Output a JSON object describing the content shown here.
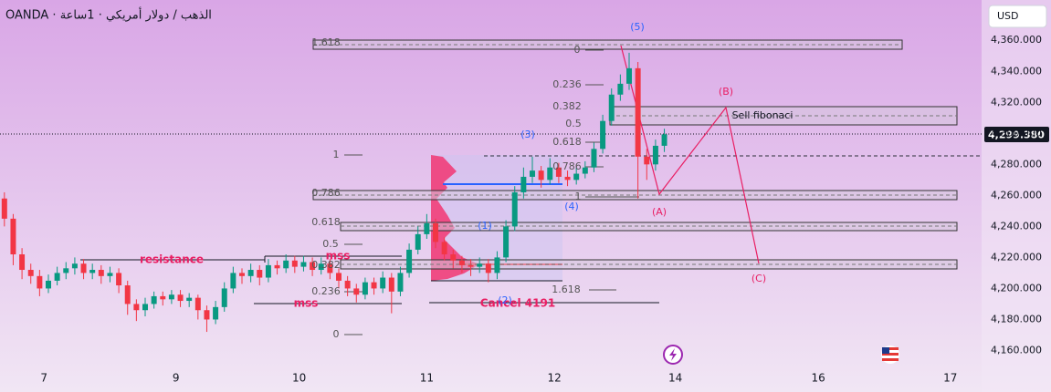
{
  "chart_data": {
    "type": "candlestick",
    "title": "OANDA · الذهب / دولار أمريكي · 1ساعة",
    "currency": "USD",
    "up_color": "#089981",
    "down_color": "#f23645",
    "grid": false,
    "xlim": [
      0,
      220
    ],
    "xticks": [
      {
        "value": 10,
        "label": "7"
      },
      {
        "value": 40,
        "label": "9"
      },
      {
        "value": 68,
        "label": "10"
      },
      {
        "value": 97,
        "label": "11"
      },
      {
        "value": 126,
        "label": "12"
      },
      {
        "value": 153.5,
        "label": "14"
      },
      {
        "value": 186,
        "label": "16"
      },
      {
        "value": 216,
        "label": "17"
      }
    ],
    "ylim": [
      4145,
      4386
    ],
    "yticks": [
      {
        "value": 4160,
        "label": "4,160.000"
      },
      {
        "value": 4180,
        "label": "4,180.000"
      },
      {
        "value": 4200,
        "label": "4,200.000"
      },
      {
        "value": 4220,
        "label": "4,220.000"
      },
      {
        "value": 4240,
        "label": "4,240.000"
      },
      {
        "value": 4260,
        "label": "4,260.000"
      },
      {
        "value": 4280,
        "label": "4,280.000"
      },
      {
        "value": 4300,
        "label": "4,300.000"
      },
      {
        "value": 4320,
        "label": "4,320.000"
      },
      {
        "value": 4340,
        "label": "4,340.000"
      },
      {
        "value": 4360,
        "label": "4,360.000"
      }
    ],
    "last_price": {
      "value": 4299.38,
      "label": "4,299.380"
    },
    "x": [
      1,
      3,
      5,
      7,
      9,
      11,
      13,
      15,
      17,
      19,
      21,
      23,
      25,
      27,
      29,
      31,
      33,
      35,
      37,
      39,
      41,
      43,
      45,
      47,
      49,
      51,
      53,
      55,
      57,
      59,
      61,
      63,
      65,
      67,
      69,
      71,
      73,
      75,
      77,
      79,
      81,
      83,
      85,
      87,
      89,
      91,
      93,
      95,
      97,
      99,
      101,
      103,
      105,
      107,
      109,
      111,
      113,
      115,
      117,
      119,
      121,
      123,
      125,
      127,
      129,
      131,
      133,
      135,
      137,
      139,
      141,
      143,
      145,
      147,
      149,
      151
    ],
    "open": [
      4258,
      4245,
      4222,
      4212,
      4208,
      4200,
      4205,
      4210,
      4213,
      4216,
      4210,
      4212,
      4208,
      4210,
      4202,
      4190,
      4186,
      4190,
      4195,
      4193,
      4196,
      4192,
      4194,
      4186,
      4180,
      4188,
      4200,
      4210,
      4208,
      4212,
      4207,
      4215,
      4213,
      4218,
      4214,
      4217,
      4212,
      4216,
      4210,
      4205,
      4200,
      4196,
      4204,
      4200,
      4207,
      4198,
      4210,
      4225,
      4235,
      4242,
      4230,
      4222,
      4218,
      4215,
      4214,
      4216,
      4210,
      4220,
      4240,
      4262,
      4272,
      4276,
      4270,
      4278,
      4272,
      4270,
      4274,
      4278,
      4290,
      4308,
      4325,
      4332,
      4342,
      4285,
      4280,
      4292
    ],
    "high": [
      4262,
      4248,
      4226,
      4216,
      4212,
      4209,
      4214,
      4217,
      4220,
      4219,
      4216,
      4215,
      4214,
      4213,
      4205,
      4193,
      4194,
      4198,
      4198,
      4199,
      4199,
      4197,
      4196,
      4189,
      4192,
      4204,
      4214,
      4213,
      4216,
      4215,
      4219,
      4218,
      4222,
      4221,
      4221,
      4220,
      4220,
      4219,
      4213,
      4208,
      4203,
      4207,
      4207,
      4211,
      4210,
      4214,
      4229,
      4240,
      4248,
      4245,
      4233,
      4225,
      4221,
      4219,
      4220,
      4219,
      4224,
      4244,
      4266,
      4278,
      4285,
      4279,
      4284,
      4281,
      4276,
      4278,
      4282,
      4294,
      4312,
      4329,
      4338,
      4352,
      4346,
      4290,
      4296,
      4303
    ],
    "low": [
      4240,
      4215,
      4206,
      4203,
      4195,
      4197,
      4202,
      4206,
      4209,
      4206,
      4206,
      4203,
      4204,
      4197,
      4183,
      4179,
      4182,
      4187,
      4189,
      4190,
      4188,
      4188,
      4180,
      4172,
      4177,
      4185,
      4197,
      4203,
      4204,
      4202,
      4204,
      4209,
      4210,
      4210,
      4211,
      4208,
      4209,
      4206,
      4200,
      4195,
      4191,
      4193,
      4196,
      4197,
      4184,
      4195,
      4207,
      4222,
      4232,
      4226,
      4218,
      4213,
      4210,
      4208,
      4210,
      4204,
      4206,
      4217,
      4237,
      4258,
      4268,
      4265,
      4267,
      4268,
      4266,
      4267,
      4271,
      4275,
      4287,
      4305,
      4321,
      4328,
      4258,
      4270,
      4276,
      4288
    ],
    "close": [
      4245,
      4222,
      4212,
      4208,
      4200,
      4205,
      4210,
      4213,
      4216,
      4210,
      4212,
      4208,
      4210,
      4202,
      4190,
      4186,
      4190,
      4195,
      4193,
      4196,
      4192,
      4194,
      4186,
      4180,
      4188,
      4200,
      4210,
      4208,
      4212,
      4207,
      4215,
      4213,
      4218,
      4214,
      4217,
      4212,
      4216,
      4210,
      4205,
      4200,
      4196,
      4204,
      4200,
      4207,
      4198,
      4210,
      4225,
      4235,
      4242,
      4230,
      4222,
      4218,
      4215,
      4214,
      4216,
      4210,
      4220,
      4240,
      4262,
      4272,
      4276,
      4270,
      4278,
      4272,
      4270,
      4274,
      4278,
      4290,
      4308,
      4325,
      4332,
      4342,
      4285,
      4280,
      4292,
      4299.38
    ],
    "annotations": [
      "(5)",
      "0",
      "0.236",
      "0.382",
      "0.5",
      "0.618",
      "(3)",
      "0.786",
      "1",
      "(4)",
      "(B)",
      "Sell fibonaci",
      "(A)",
      "(C)",
      "1",
      "0.786",
      "0.618",
      "0.5",
      "0.382",
      "0.236",
      "0",
      "1.618",
      "1.618",
      "resistance",
      "mss",
      "mss",
      "Cancel 4191",
      "(1)",
      "(2)"
    ]
  }
}
